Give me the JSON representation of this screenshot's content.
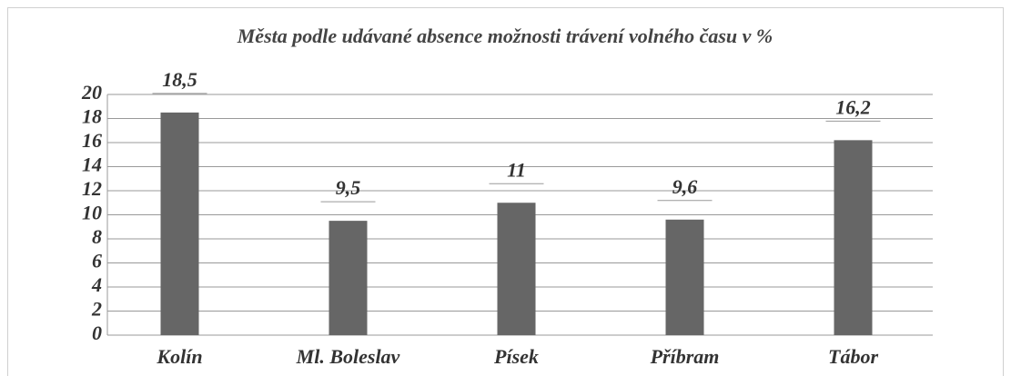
{
  "chart_data": {
    "type": "bar",
    "title": "Města podle udávané absence možnosti trávení volného času v %",
    "categories": [
      "Kolín",
      "Ml. Boleslav",
      "Písek",
      "Příbram",
      "Tábor"
    ],
    "values": [
      18.5,
      9.5,
      11,
      9.6,
      16.2
    ],
    "value_labels": [
      "18,5",
      "9,5",
      "11",
      "9,6",
      "16,2"
    ],
    "color": "#666666",
    "ylim": [
      0,
      20
    ],
    "yticks": [
      0,
      2,
      4,
      6,
      8,
      10,
      12,
      14,
      16,
      18,
      20
    ],
    "grid": true
  }
}
